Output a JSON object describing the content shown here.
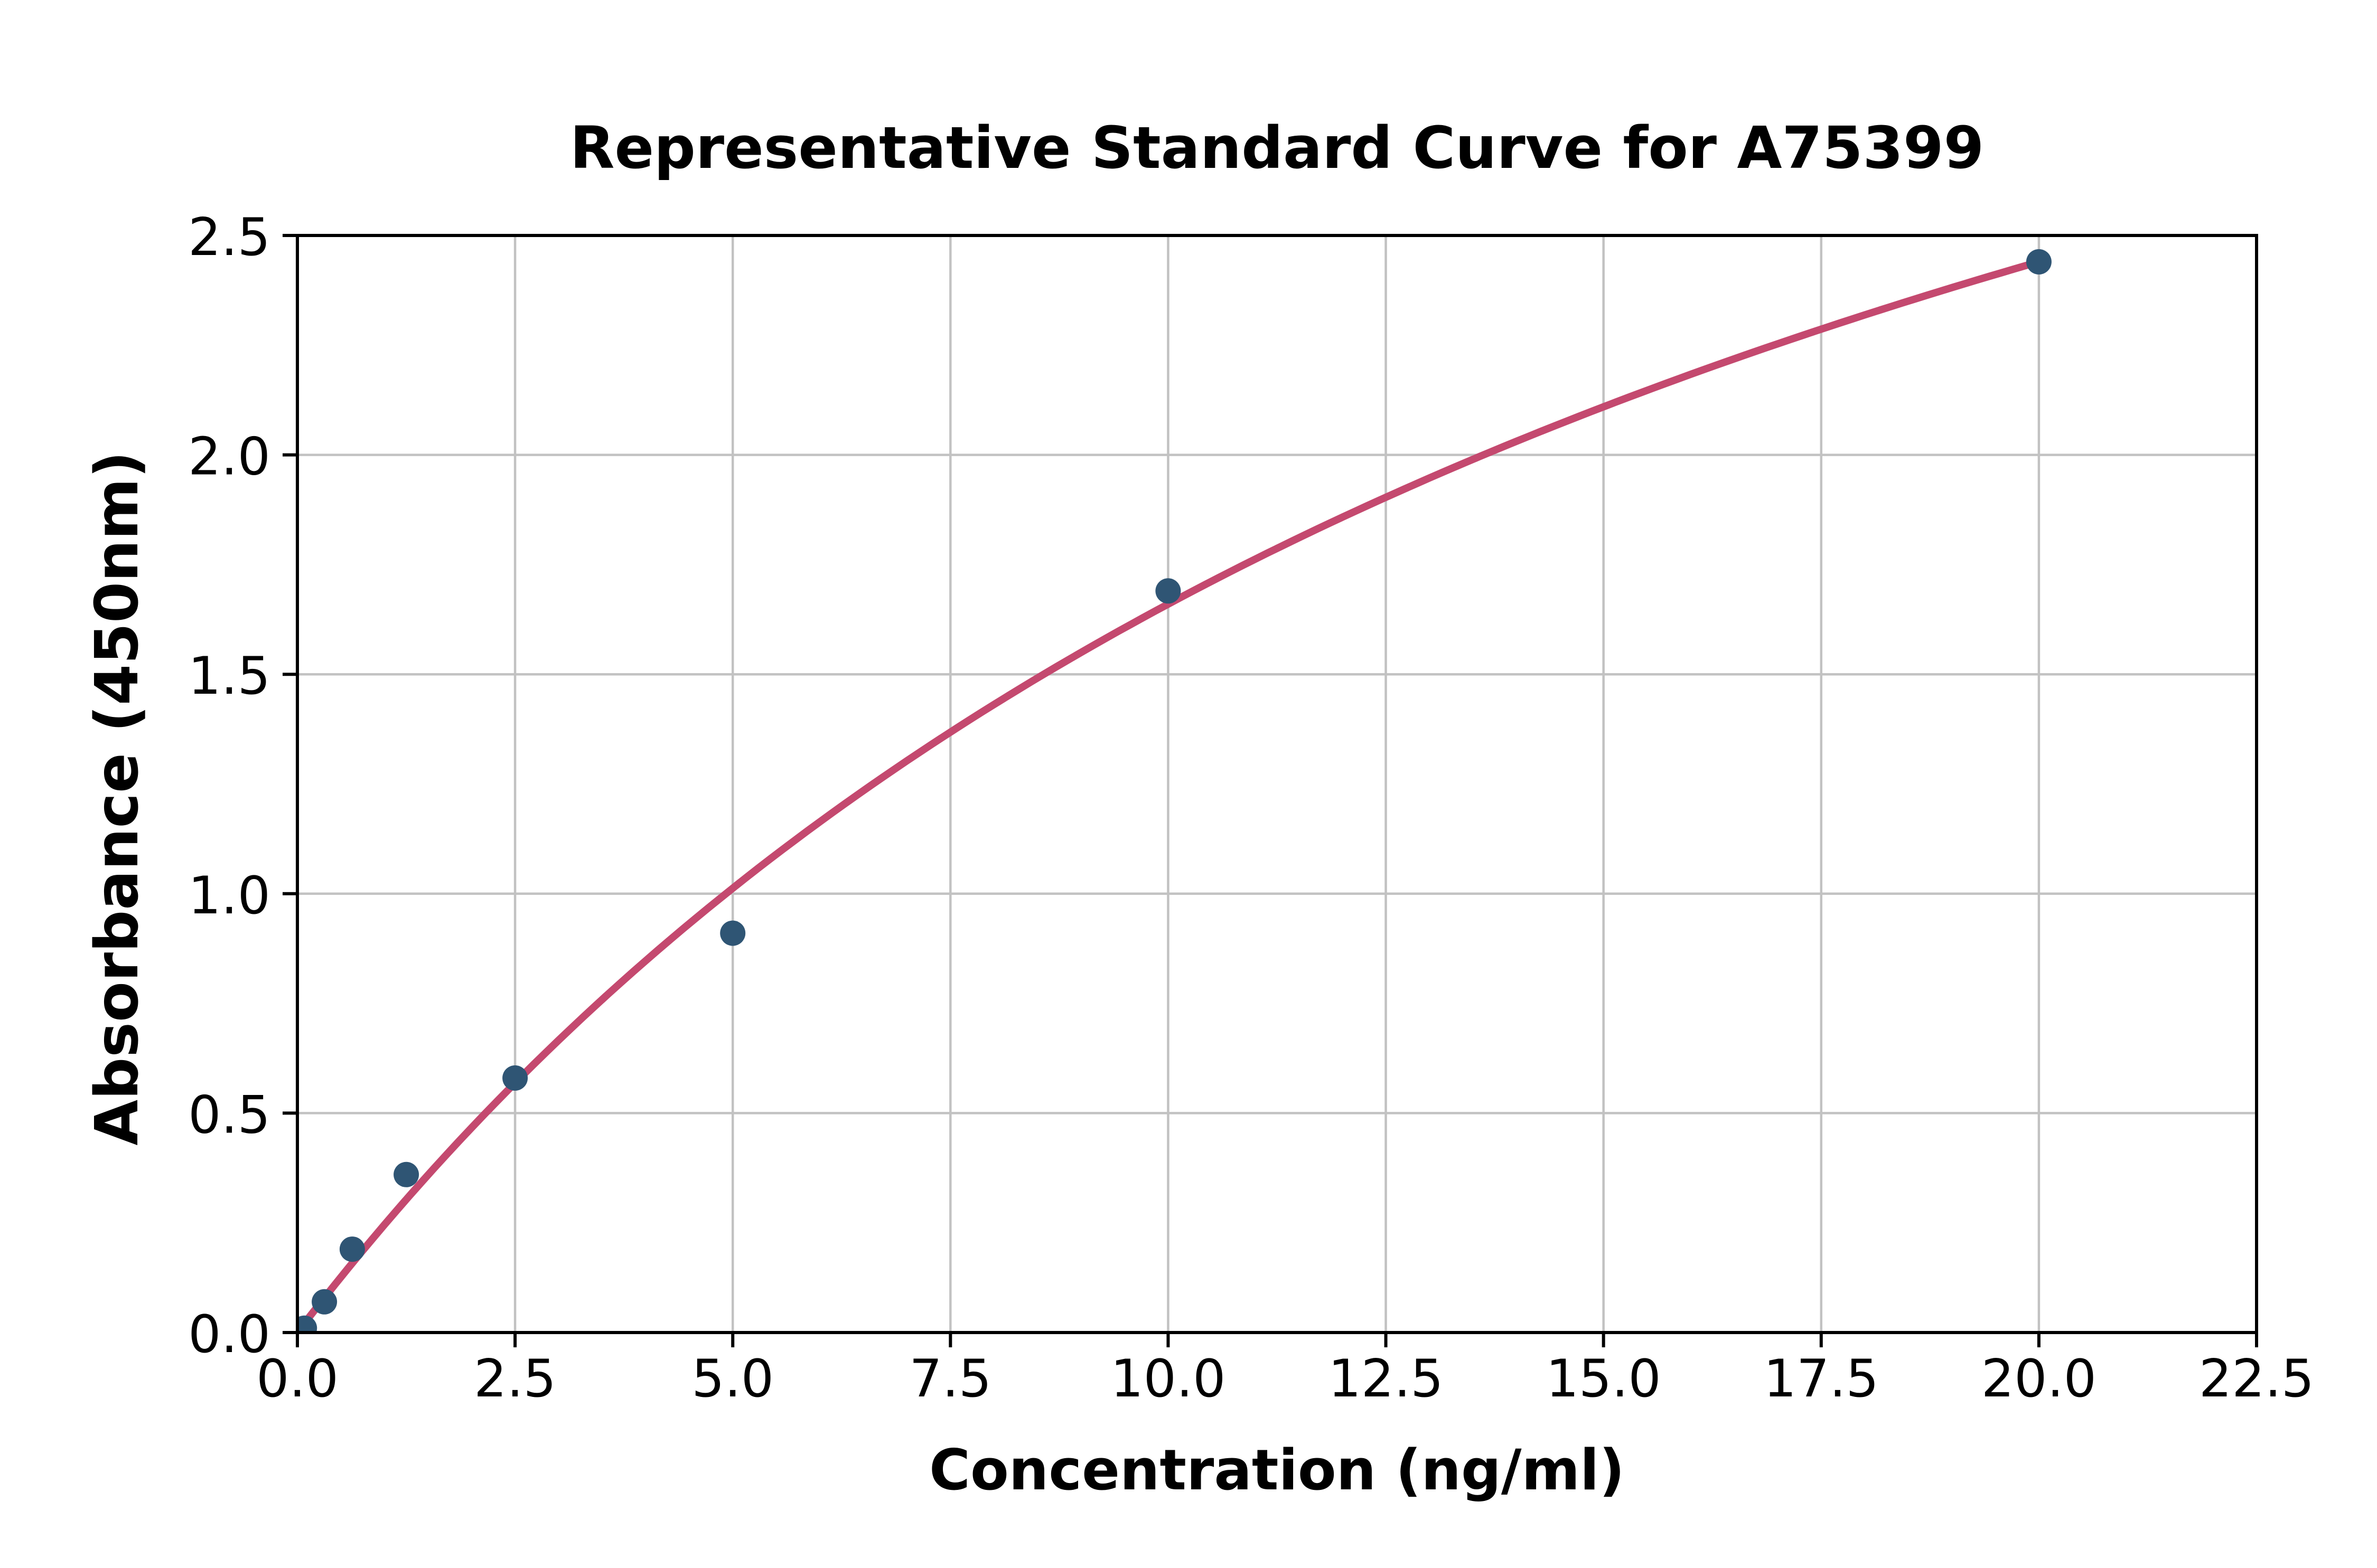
{
  "chart_data": {
    "type": "scatter",
    "title": "Representative Standard Curve for A75399",
    "xlabel": "Concentration (ng/ml)",
    "ylabel": "Absorbance (450nm)",
    "xlim": [
      0,
      22.5
    ],
    "ylim": [
      0,
      2.5
    ],
    "x_tick_labels": [
      "0.0",
      "2.5",
      "5.0",
      "7.5",
      "10.0",
      "12.5",
      "15.0",
      "17.5",
      "20.0",
      "22.5"
    ],
    "y_tick_labels": [
      "0.0",
      "0.5",
      "1.0",
      "1.5",
      "2.0",
      "2.5"
    ],
    "grid": true,
    "legend": false,
    "points": [
      [
        0.08,
        0.01
      ],
      [
        0.31,
        0.07
      ],
      [
        0.63,
        0.19
      ],
      [
        1.25,
        0.36
      ],
      [
        2.5,
        0.58
      ],
      [
        5.0,
        0.91
      ],
      [
        10.0,
        1.69
      ],
      [
        20.0,
        2.44
      ]
    ],
    "fit_curve": {
      "model": "y = d*x/(c + x)",
      "d": 4.603,
      "c": 17.73,
      "x_range": [
        0,
        20
      ],
      "samples": [
        [
          0,
          0.0
        ],
        [
          1.25,
          0.3
        ],
        [
          2.5,
          0.57
        ],
        [
          5,
          1.01
        ],
        [
          7.5,
          1.37
        ],
        [
          10,
          1.66
        ],
        [
          12.5,
          1.9
        ],
        [
          15,
          2.11
        ],
        [
          17.5,
          2.29
        ],
        [
          20,
          2.44
        ]
      ]
    },
    "colors": {
      "points": "#2F5574",
      "curve": "#C4496F",
      "grid": "#C2C2C2",
      "axis": "#000000",
      "text": "#000000",
      "background": "#FFFFFF"
    }
  }
}
